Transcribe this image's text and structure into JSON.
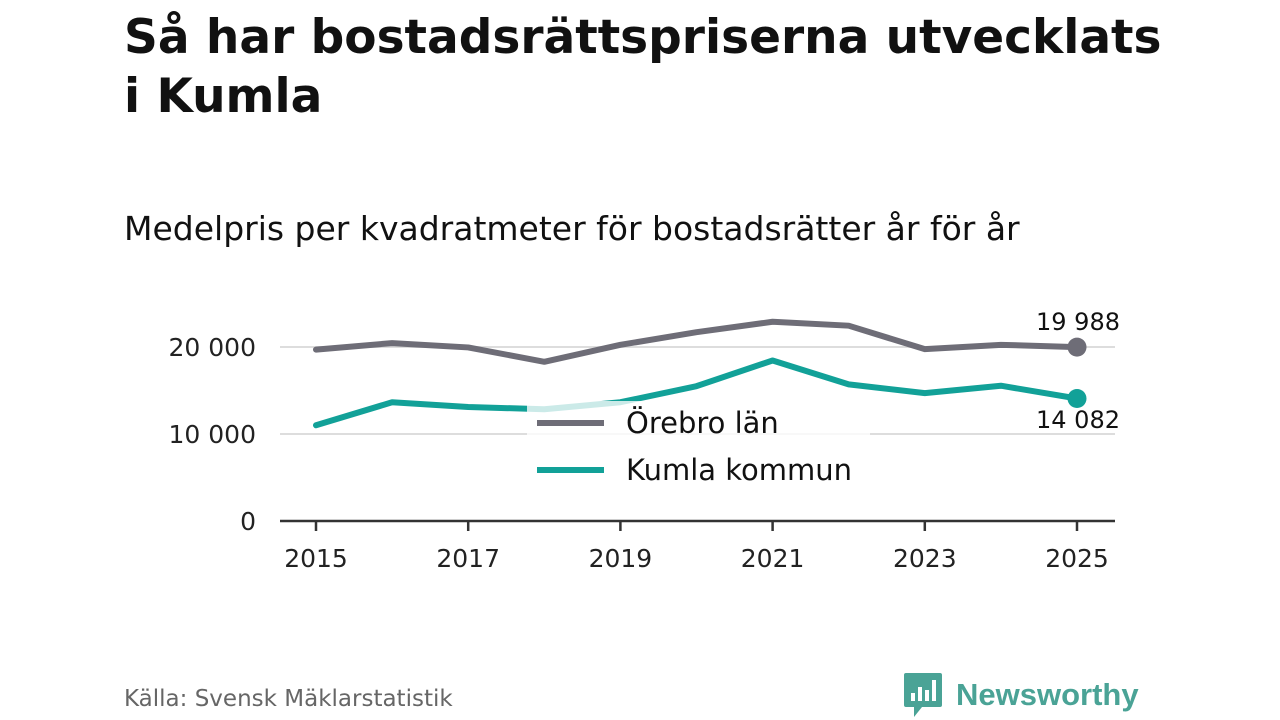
{
  "title": "Så har bostadsrättspriserna utvecklats i Kumla",
  "subtitle": "Medelpris per kvadratmeter för bostadsrätter år för år",
  "source": "Källa: Svensk Mäklarstatistik",
  "brand": {
    "name": "Newsworthy",
    "icon": "newsworthy-logo-icon"
  },
  "colors": {
    "orebro": "#6e6d77",
    "kumla": "#12a198",
    "grid": "#dddddd",
    "axis": "#333333"
  },
  "chart_data": {
    "type": "line",
    "x": [
      2015,
      2016,
      2017,
      2018,
      2019,
      2020,
      2021,
      2022,
      2023,
      2024,
      2025
    ],
    "x_ticks": [
      2015,
      2017,
      2019,
      2021,
      2023,
      2025
    ],
    "x_tick_labels": [
      "2015",
      "2017",
      "2019",
      "2021",
      "2023",
      "2025"
    ],
    "y_ticks": [
      0,
      10000,
      20000
    ],
    "y_tick_labels": [
      "0",
      "10 000",
      "20 000"
    ],
    "ylim": [
      0,
      24000
    ],
    "xlim": [
      2015,
      2025
    ],
    "grid": true,
    "legend_position": "center",
    "series": [
      {
        "key": "orebro",
        "name": "Örebro län",
        "values": [
          19700,
          20450,
          19950,
          18300,
          20250,
          21700,
          22900,
          22450,
          19750,
          20250,
          19988
        ],
        "end_label": "19 988"
      },
      {
        "key": "kumla",
        "name": "Kumla kommun",
        "values": [
          11000,
          13650,
          13100,
          12850,
          13650,
          15500,
          18450,
          15700,
          14700,
          15550,
          14082
        ],
        "end_label": "14 082"
      }
    ]
  }
}
